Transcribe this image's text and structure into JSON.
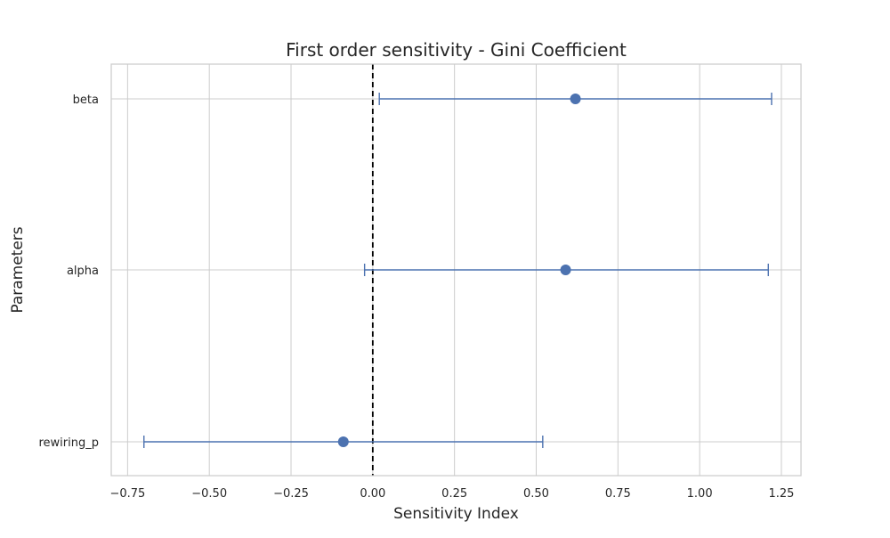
{
  "chart_data": {
    "type": "errorbar",
    "title": "First order sensitivity - Gini Coefficient",
    "xlabel": "Sensitivity Index",
    "ylabel": "Parameters",
    "xlim": [
      -0.8,
      1.31
    ],
    "xticks": [
      -0.75,
      -0.5,
      -0.25,
      0.0,
      0.25,
      0.5,
      0.75,
      1.0,
      1.25
    ],
    "xtick_labels": [
      "−0.75",
      "−0.50",
      "−0.25",
      "0.00",
      "0.25",
      "0.50",
      "0.75",
      "1.00",
      "1.25"
    ],
    "categories": [
      "beta",
      "alpha",
      "rewiring_p"
    ],
    "points": [
      {
        "label": "beta",
        "value": 0.62,
        "ci_low": 0.02,
        "ci_high": 1.22
      },
      {
        "label": "alpha",
        "value": 0.59,
        "ci_low": -0.025,
        "ci_high": 1.21
      },
      {
        "label": "rewiring_p",
        "value": -0.09,
        "ci_low": -0.7,
        "ci_high": 0.52
      }
    ],
    "reference_line": {
      "x": 0.0,
      "style": "dashed",
      "color": "#000000"
    },
    "marker_color": "#4c72b0",
    "grid": true,
    "legend": "none"
  }
}
